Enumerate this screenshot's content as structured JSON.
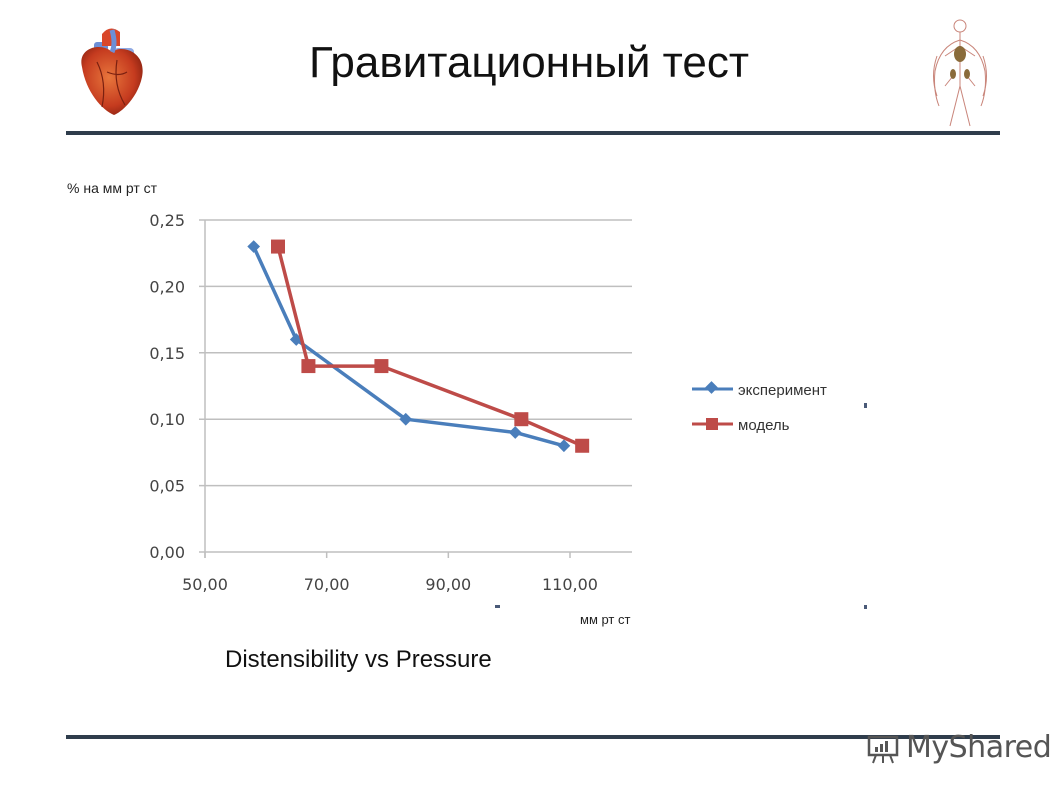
{
  "slide": {
    "title": "Гравитационный тест",
    "caption": "Distensibility vs Pressure",
    "watermark": "MyShared",
    "icons": [
      "heart-illustration",
      "circulatory-system-illustration",
      "presentation-board-icon"
    ]
  },
  "colors": {
    "experiment": "#4a7ebb",
    "model": "#be4b48",
    "grid": "#bfbfbf",
    "rule": "#2f3d4c"
  },
  "chart_data": {
    "type": "line",
    "title": "",
    "xlabel": "мм рт ст",
    "ylabel": "% на мм рт ст",
    "xlim": [
      50,
      120
    ],
    "ylim": [
      0,
      0.25
    ],
    "x_ticks": [
      "50,00",
      "70,00",
      "90,00",
      "110,00"
    ],
    "y_ticks": [
      "0,00",
      "0,05",
      "0,10",
      "0,15",
      "0,20",
      "0,25"
    ],
    "grid": true,
    "legend_position": "right",
    "series": [
      {
        "name": "эксперимент",
        "marker": "diamond",
        "color": "#4a7ebb",
        "points": [
          [
            58,
            0.23
          ],
          [
            65,
            0.16
          ],
          [
            83,
            0.1
          ],
          [
            101,
            0.09
          ],
          [
            109,
            0.08
          ]
        ]
      },
      {
        "name": "модель",
        "marker": "square",
        "color": "#be4b48",
        "points": [
          [
            62,
            0.23
          ],
          [
            67,
            0.14
          ],
          [
            79,
            0.14
          ],
          [
            102,
            0.1
          ],
          [
            112,
            0.08
          ]
        ]
      }
    ]
  }
}
